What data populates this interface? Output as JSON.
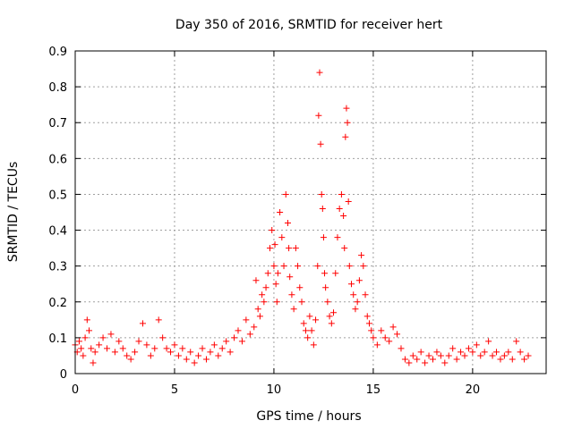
{
  "chart_data": {
    "type": "scatter",
    "title": "Day 350 of 2016, SRMTID for receiver hert",
    "xlabel": "GPS time / hours",
    "ylabel": "SRMTID / TECUs",
    "xlim": [
      0,
      23.7
    ],
    "ylim": [
      0,
      0.9
    ],
    "xticks": [
      0,
      5,
      10,
      15,
      20
    ],
    "yticks": [
      0,
      0.1,
      0.2,
      0.3,
      0.4,
      0.5,
      0.6,
      0.7,
      0.8,
      0.9
    ],
    "xtick_labels": [
      "0",
      "5",
      "10",
      "15",
      "20"
    ],
    "ytick_labels": [
      "0",
      "0.1",
      "0.2",
      "0.3",
      "0.4",
      "0.5",
      "0.6",
      "0.7",
      "0.8",
      "0.9"
    ],
    "grid": true,
    "marker": "+",
    "color": "#ff0000",
    "series": [
      {
        "name": "SRMTID",
        "x": [
          0.0,
          0.1,
          0.2,
          0.3,
          0.4,
          0.5,
          0.6,
          0.7,
          0.8,
          0.9,
          1.0,
          1.2,
          1.4,
          1.6,
          1.8,
          2.0,
          2.2,
          2.4,
          2.6,
          2.8,
          3.0,
          3.2,
          3.4,
          3.6,
          3.8,
          4.0,
          4.2,
          4.4,
          4.6,
          4.8,
          5.0,
          5.2,
          5.4,
          5.6,
          5.8,
          6.0,
          6.2,
          6.4,
          6.6,
          6.8,
          7.0,
          7.2,
          7.4,
          7.6,
          7.8,
          8.0,
          8.2,
          8.4,
          8.6,
          8.8,
          9.0,
          9.1,
          9.2,
          9.3,
          9.4,
          9.5,
          9.6,
          9.7,
          9.8,
          9.9,
          10.0,
          10.05,
          10.1,
          10.15,
          10.2,
          10.3,
          10.4,
          10.5,
          10.6,
          10.7,
          10.75,
          10.8,
          10.9,
          11.0,
          11.1,
          11.2,
          11.3,
          11.4,
          11.5,
          11.6,
          11.7,
          11.8,
          11.9,
          12.0,
          12.1,
          12.2,
          12.25,
          12.3,
          12.35,
          12.4,
          12.45,
          12.5,
          12.55,
          12.6,
          12.7,
          12.8,
          12.9,
          13.0,
          13.1,
          13.2,
          13.3,
          13.4,
          13.5,
          13.55,
          13.6,
          13.65,
          13.7,
          13.75,
          13.8,
          13.9,
          14.0,
          14.1,
          14.2,
          14.3,
          14.4,
          14.5,
          14.6,
          14.7,
          14.8,
          14.9,
          15.0,
          15.2,
          15.4,
          15.6,
          15.8,
          16.0,
          16.2,
          16.4,
          16.6,
          16.8,
          17.0,
          17.2,
          17.4,
          17.6,
          17.8,
          18.0,
          18.2,
          18.4,
          18.6,
          18.8,
          19.0,
          19.2,
          19.4,
          19.6,
          19.8,
          20.0,
          20.2,
          20.4,
          20.6,
          20.8,
          21.0,
          21.2,
          21.4,
          21.6,
          21.8,
          22.0,
          22.2,
          22.4,
          22.6,
          22.8
        ],
        "y": [
          0.08,
          0.06,
          0.09,
          0.07,
          0.05,
          0.1,
          0.15,
          0.12,
          0.07,
          0.03,
          0.06,
          0.08,
          0.1,
          0.07,
          0.11,
          0.06,
          0.09,
          0.07,
          0.05,
          0.04,
          0.06,
          0.09,
          0.14,
          0.08,
          0.05,
          0.07,
          0.15,
          0.1,
          0.07,
          0.06,
          0.08,
          0.05,
          0.07,
          0.04,
          0.06,
          0.03,
          0.05,
          0.07,
          0.04,
          0.06,
          0.08,
          0.05,
          0.07,
          0.09,
          0.06,
          0.1,
          0.12,
          0.09,
          0.15,
          0.11,
          0.13,
          0.26,
          0.18,
          0.16,
          0.22,
          0.2,
          0.24,
          0.28,
          0.35,
          0.4,
          0.3,
          0.36,
          0.25,
          0.2,
          0.28,
          0.45,
          0.38,
          0.3,
          0.5,
          0.42,
          0.35,
          0.27,
          0.22,
          0.18,
          0.35,
          0.3,
          0.24,
          0.2,
          0.14,
          0.12,
          0.1,
          0.16,
          0.12,
          0.08,
          0.15,
          0.3,
          0.72,
          0.84,
          0.64,
          0.5,
          0.46,
          0.38,
          0.28,
          0.24,
          0.2,
          0.16,
          0.14,
          0.17,
          0.28,
          0.38,
          0.46,
          0.5,
          0.44,
          0.35,
          0.66,
          0.74,
          0.7,
          0.48,
          0.3,
          0.25,
          0.22,
          0.18,
          0.2,
          0.26,
          0.33,
          0.3,
          0.22,
          0.16,
          0.14,
          0.12,
          0.1,
          0.08,
          0.12,
          0.1,
          0.09,
          0.13,
          0.11,
          0.07,
          0.04,
          0.03,
          0.05,
          0.04,
          0.06,
          0.03,
          0.05,
          0.04,
          0.06,
          0.05,
          0.03,
          0.05,
          0.07,
          0.04,
          0.06,
          0.05,
          0.07,
          0.06,
          0.08,
          0.05,
          0.06,
          0.09,
          0.05,
          0.06,
          0.04,
          0.05,
          0.06,
          0.04,
          0.09,
          0.06,
          0.04,
          0.05
        ]
      }
    ]
  }
}
